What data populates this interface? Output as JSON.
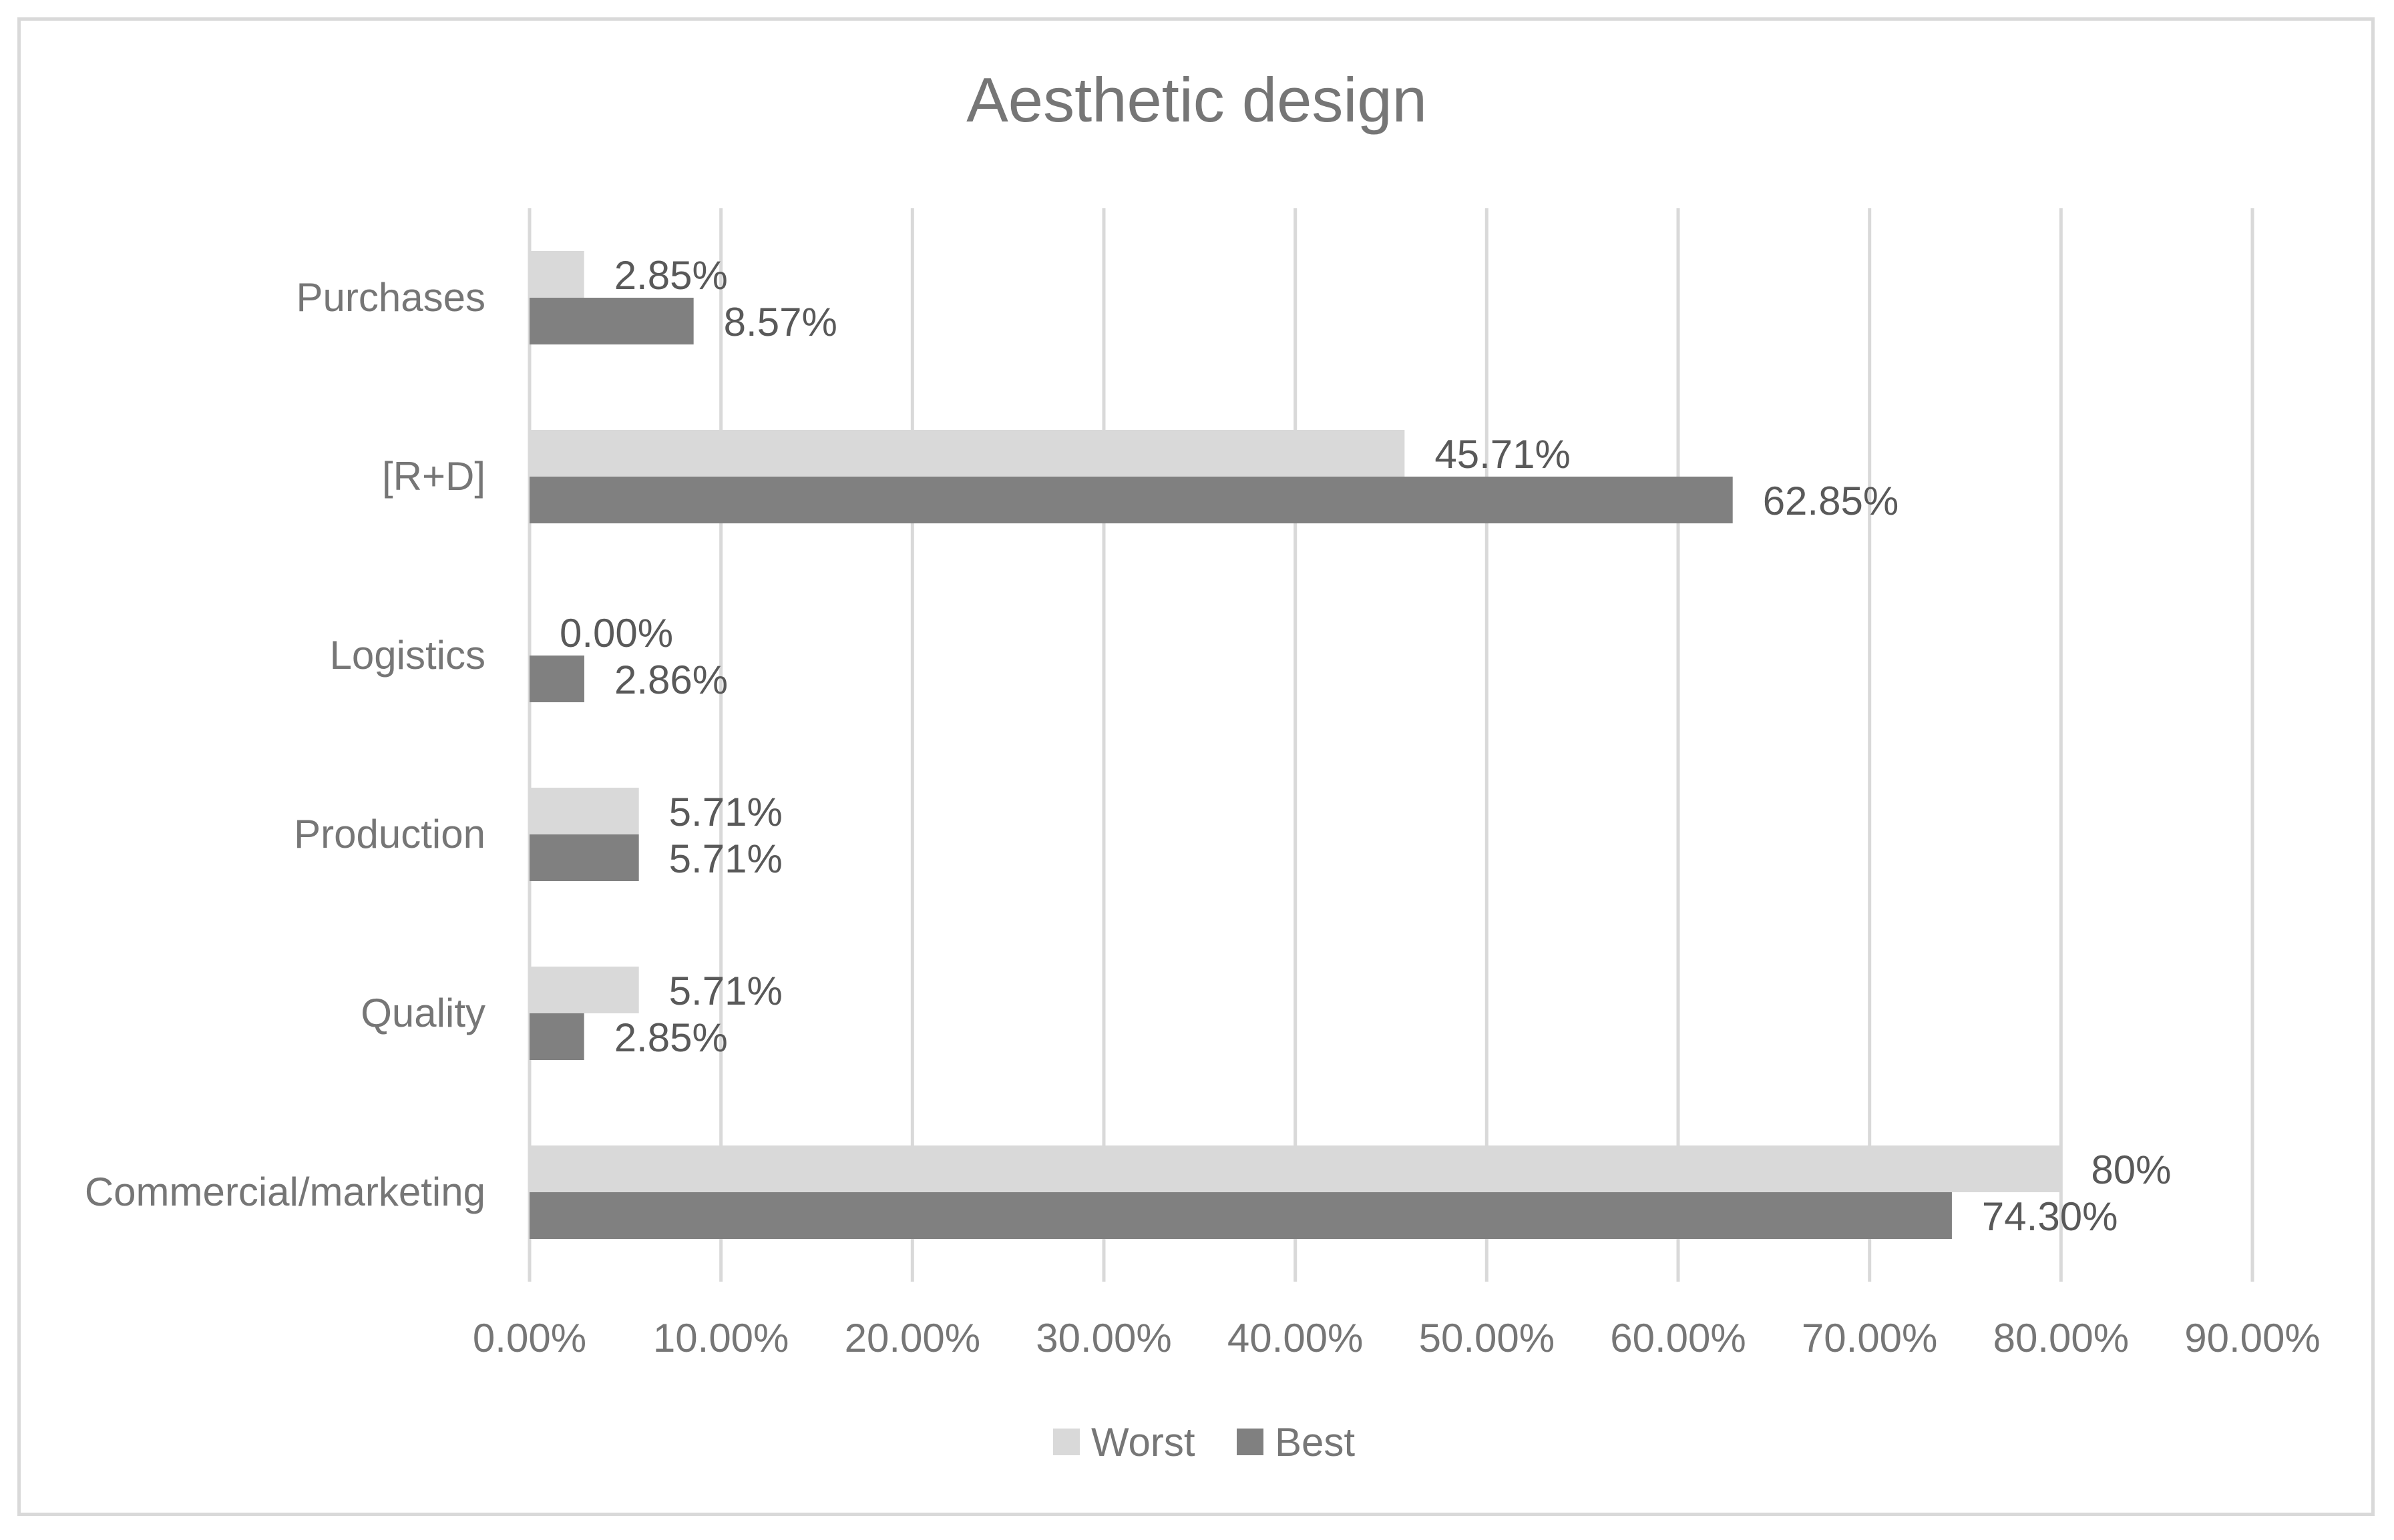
{
  "chart_data": {
    "type": "bar",
    "orientation": "horizontal",
    "title": "Aesthetic design",
    "categories": [
      "Purchases",
      "[R+D]",
      "Logistics",
      "Production",
      "Quality",
      "Commercial/marketing"
    ],
    "series": [
      {
        "name": "Worst",
        "color": "#d9d9d9",
        "values": [
          2.85,
          45.71,
          0.0,
          5.71,
          5.71,
          80.0
        ],
        "labels": [
          "2.85%",
          "45.71%",
          "0.00%",
          "5.71%",
          "5.71%",
          "80%"
        ]
      },
      {
        "name": "Best",
        "color": "#808080",
        "values": [
          8.57,
          62.85,
          2.86,
          5.71,
          2.85,
          74.3
        ],
        "labels": [
          "8.57%",
          "62.85%",
          "2.86%",
          "5.71%",
          "2.85%",
          "74.30%"
        ]
      }
    ],
    "x_ticks": [
      "0.00%",
      "10.00%",
      "20.00%",
      "30.00%",
      "40.00%",
      "50.00%",
      "60.00%",
      "70.00%",
      "80.00%",
      "90.00%"
    ],
    "xlim": [
      0,
      90
    ],
    "grid": "vertical",
    "legend_position": "bottom"
  }
}
